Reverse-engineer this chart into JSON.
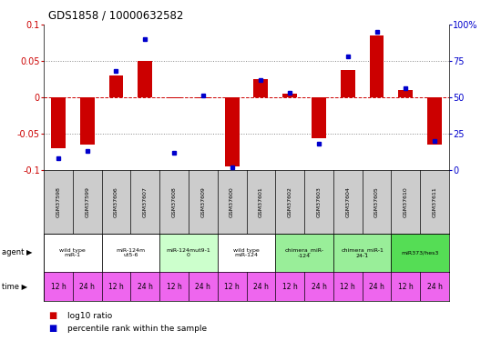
{
  "title": "GDS1858 / 10000632582",
  "samples": [
    "GSM37598",
    "GSM37599",
    "GSM37606",
    "GSM37607",
    "GSM37608",
    "GSM37609",
    "GSM37600",
    "GSM37601",
    "GSM37602",
    "GSM37603",
    "GSM37604",
    "GSM37605",
    "GSM37610",
    "GSM37611"
  ],
  "log10_ratio": [
    -0.07,
    -0.065,
    0.03,
    0.05,
    -0.001,
    -0.001,
    -0.095,
    0.025,
    0.005,
    -0.056,
    0.038,
    0.085,
    0.01,
    -0.065
  ],
  "percentile_rank": [
    8,
    13,
    68,
    90,
    12,
    51,
    2,
    62,
    53,
    18,
    78,
    95,
    56,
    20
  ],
  "agents": [
    {
      "label": "wild type\nmiR-1",
      "cols": [
        0,
        1
      ],
      "color": "#ffffff"
    },
    {
      "label": "miR-124m\nut5-6",
      "cols": [
        2,
        3
      ],
      "color": "#ffffff"
    },
    {
      "label": "miR-124mut9-1\n0",
      "cols": [
        4,
        5
      ],
      "color": "#ccffcc"
    },
    {
      "label": "wild type\nmiR-124",
      "cols": [
        6,
        7
      ],
      "color": "#ffffff"
    },
    {
      "label": "chimera_miR-\n-124",
      "cols": [
        8,
        9
      ],
      "color": "#99ee99"
    },
    {
      "label": "chimera_miR-1\n24-1",
      "cols": [
        10,
        11
      ],
      "color": "#99ee99"
    },
    {
      "label": "miR373/hes3",
      "cols": [
        12,
        13
      ],
      "color": "#55dd55"
    }
  ],
  "time_labels": [
    "12 h",
    "24 h",
    "12 h",
    "24 h",
    "12 h",
    "24 h",
    "12 h",
    "24 h",
    "12 h",
    "24 h",
    "12 h",
    "24 h",
    "12 h",
    "24 h"
  ],
  "time_color": "#ee66ee",
  "ylim_left": [
    -0.1,
    0.1
  ],
  "ylim_right": [
    0,
    100
  ],
  "yticks_left": [
    -0.1,
    -0.05,
    0,
    0.05,
    0.1
  ],
  "yticks_right": [
    0,
    25,
    50,
    75,
    100
  ],
  "bar_color": "#cc0000",
  "dot_color": "#0000cc",
  "grid_color": "#888888",
  "bg_color": "#ffffff",
  "sample_bg": "#cccccc"
}
